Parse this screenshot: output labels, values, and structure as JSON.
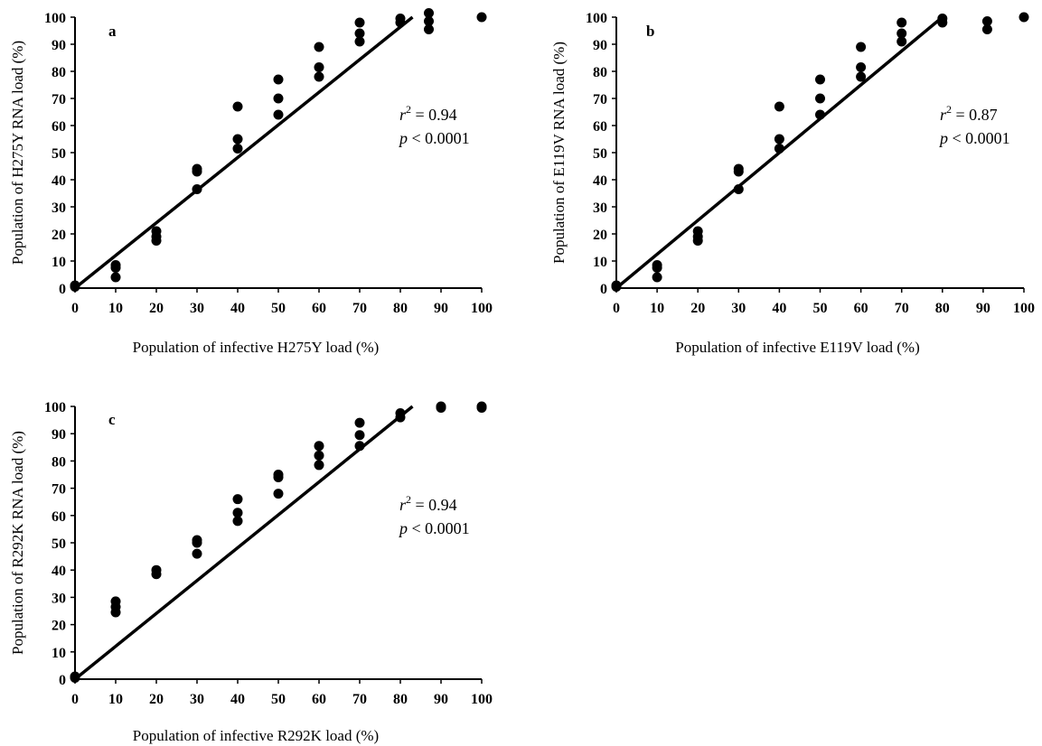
{
  "chart_data": [
    {
      "type": "scatter",
      "panel_label": "a",
      "xlabel": "Population of infective H275Y load (%)",
      "ylabel": "Population of H275Y RNA load (%)",
      "xlim": [
        0,
        100
      ],
      "ylim": [
        0,
        100
      ],
      "x_ticks": [
        "0",
        "10",
        "20",
        "30",
        "40",
        "50",
        "60",
        "70",
        "80",
        "90",
        "100"
      ],
      "y_ticks": [
        "0",
        "10",
        "20",
        "30",
        "40",
        "50",
        "60",
        "70",
        "80",
        "90",
        "100"
      ],
      "points": [
        [
          0,
          0.5
        ],
        [
          0,
          1
        ],
        [
          10,
          7.5
        ],
        [
          10,
          8.5
        ],
        [
          10,
          4
        ],
        [
          20,
          21
        ],
        [
          20,
          19
        ],
        [
          20,
          17.5
        ],
        [
          30,
          44
        ],
        [
          30,
          43
        ],
        [
          30,
          36.5
        ],
        [
          40,
          67
        ],
        [
          40,
          55
        ],
        [
          40,
          51.5
        ],
        [
          50,
          77
        ],
        [
          50,
          70
        ],
        [
          50,
          64
        ],
        [
          60,
          89
        ],
        [
          60,
          81.5
        ],
        [
          60,
          78
        ],
        [
          70,
          98
        ],
        [
          70,
          94
        ],
        [
          70,
          91
        ],
        [
          80,
          99.5
        ],
        [
          80,
          98
        ],
        [
          87,
          101.5
        ],
        [
          87,
          98.5
        ],
        [
          87,
          95.5
        ],
        [
          100,
          100
        ]
      ],
      "fit_line": [
        [
          0,
          0
        ],
        [
          83,
          100
        ]
      ],
      "r2_prefix": "r",
      "r2_sup": "2",
      "r2_value": " = 0.94",
      "p_prefix": "p",
      "p_value": " < 0.0001",
      "grid": false
    },
    {
      "type": "scatter",
      "panel_label": "b",
      "xlabel": "Population of infective E119V load (%)",
      "ylabel": "Population of E119V RNA load (%)",
      "xlim": [
        0,
        100
      ],
      "ylim": [
        0,
        100
      ],
      "x_ticks": [
        "0",
        "10",
        "20",
        "30",
        "40",
        "50",
        "60",
        "70",
        "80",
        "90",
        "100"
      ],
      "y_ticks": [
        "0",
        "10",
        "20",
        "30",
        "40",
        "50",
        "60",
        "70",
        "80",
        "90",
        "100"
      ],
      "points": [
        [
          0,
          0.5
        ],
        [
          0,
          1
        ],
        [
          10,
          7.5
        ],
        [
          10,
          8.5
        ],
        [
          10,
          4
        ],
        [
          20,
          21
        ],
        [
          20,
          19
        ],
        [
          20,
          17.5
        ],
        [
          30,
          44
        ],
        [
          30,
          43
        ],
        [
          30,
          36.5
        ],
        [
          40,
          67
        ],
        [
          40,
          55
        ],
        [
          40,
          51.5
        ],
        [
          50,
          77
        ],
        [
          50,
          70
        ],
        [
          50,
          64
        ],
        [
          60,
          89
        ],
        [
          60,
          81.5
        ],
        [
          60,
          78
        ],
        [
          70,
          98
        ],
        [
          70,
          94
        ],
        [
          70,
          91
        ],
        [
          80,
          99.5
        ],
        [
          80,
          98
        ],
        [
          91,
          98.5
        ],
        [
          91,
          95.5
        ],
        [
          100,
          100
        ]
      ],
      "fit_line": [
        [
          0,
          0
        ],
        [
          80,
          100
        ]
      ],
      "r2_prefix": "r",
      "r2_sup": "2",
      "r2_value": " = 0.87",
      "p_prefix": "p",
      "p_value": " < 0.0001",
      "grid": false
    },
    {
      "type": "scatter",
      "panel_label": "c",
      "xlabel": "Population of infective R292K load (%)",
      "ylabel": "Population of R292K RNA load (%)",
      "xlim": [
        0,
        100
      ],
      "ylim": [
        0,
        100
      ],
      "x_ticks": [
        "0",
        "10",
        "20",
        "30",
        "40",
        "50",
        "60",
        "70",
        "80",
        "90",
        "100"
      ],
      "y_ticks": [
        "0",
        "10",
        "20",
        "30",
        "40",
        "50",
        "60",
        "70",
        "80",
        "90",
        "100"
      ],
      "points": [
        [
          0,
          0.5
        ],
        [
          0,
          1
        ],
        [
          10,
          28.5
        ],
        [
          10,
          26.5
        ],
        [
          10,
          24.5
        ],
        [
          20,
          40
        ],
        [
          20,
          38.5
        ],
        [
          30,
          51
        ],
        [
          30,
          50
        ],
        [
          30,
          46
        ],
        [
          40,
          66
        ],
        [
          40,
          61
        ],
        [
          40,
          58
        ],
        [
          50,
          75
        ],
        [
          50,
          74
        ],
        [
          50,
          68
        ],
        [
          60,
          85.5
        ],
        [
          60,
          82
        ],
        [
          60,
          78.5
        ],
        [
          70,
          94
        ],
        [
          70,
          89.5
        ],
        [
          70,
          85.5
        ],
        [
          80,
          97.5
        ],
        [
          80,
          96
        ],
        [
          90,
          100
        ],
        [
          90,
          99.5
        ],
        [
          100,
          100
        ],
        [
          100,
          99.5
        ]
      ],
      "fit_line": [
        [
          0,
          0
        ],
        [
          83,
          100
        ]
      ],
      "r2_prefix": "r",
      "r2_sup": "2",
      "r2_value": " = 0.94",
      "p_prefix": "p",
      "p_value": " < 0.0001",
      "grid": false
    }
  ],
  "colors": {
    "marker": "#000000",
    "line": "#000000",
    "background": "#ffffff"
  }
}
